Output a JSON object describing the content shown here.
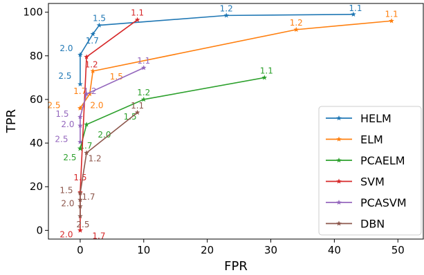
{
  "chart_data": {
    "type": "line",
    "xlabel": "FPR",
    "ylabel": "TPR",
    "xlim": [
      -5,
      54
    ],
    "ylim": [
      -4,
      104
    ],
    "xticks": [
      0,
      10,
      20,
      30,
      40,
      50
    ],
    "yticks": [
      0,
      20,
      40,
      60,
      80,
      100
    ],
    "grid": false,
    "legend_position": "lower-right",
    "series": [
      {
        "name": "HELM",
        "color": "#1f77b4",
        "points": [
          [
            43,
            99
          ],
          [
            23,
            98.5
          ],
          [
            3,
            94
          ],
          [
            2,
            90
          ],
          [
            0,
            80.5
          ],
          [
            0,
            67
          ]
        ],
        "labels": [
          "1.1",
          "1.2",
          "1.5",
          "1.7",
          "2.0",
          "2.5"
        ],
        "label_offsets": [
          [
            3,
            -5
          ],
          [
            0,
            -6
          ],
          [
            0,
            -6
          ],
          [
            -1,
            14
          ],
          [
            -20,
            -5
          ],
          [
            -22,
            -8
          ]
        ]
      },
      {
        "name": "ELM",
        "color": "#ff7f0e",
        "points": [
          [
            49,
            96
          ],
          [
            34,
            92
          ],
          [
            2,
            73
          ],
          [
            1.5,
            62.5
          ],
          [
            0,
            56
          ],
          [
            0,
            56
          ]
        ],
        "labels": [
          "1.1",
          "1.2",
          "1.5",
          "1.7",
          "2.0",
          "2.5"
        ],
        "label_offsets": [
          [
            0,
            -6
          ],
          [
            0,
            -6
          ],
          [
            34,
            12
          ],
          [
            -14,
            0
          ],
          [
            24,
            0
          ],
          [
            -38,
            0
          ]
        ]
      },
      {
        "name": "PCAELM",
        "color": "#2ca02c",
        "points": [
          [
            29,
            70
          ],
          [
            10,
            60
          ],
          [
            1,
            48.5
          ],
          [
            0,
            37.5
          ],
          [
            0,
            37.5
          ],
          [
            0,
            37.5
          ]
        ],
        "labels": [
          "1.1",
          "1.2",
          "1.5",
          "1.7",
          "2.0",
          "2.5"
        ],
        "label_offsets": [
          [
            3,
            -6
          ],
          [
            0,
            -6
          ],
          [
            63,
            -7
          ],
          [
            8,
            0
          ],
          [
            35,
            -16
          ],
          [
            -15,
            17
          ]
        ]
      },
      {
        "name": "SVM",
        "color": "#d62728",
        "points": [
          [
            9,
            96.5
          ],
          [
            1,
            79.5
          ],
          [
            0,
            17.5
          ],
          [
            0,
            0
          ],
          [
            0,
            0
          ]
        ],
        "labels": [
          "1.1",
          "1.2",
          "1.5",
          "1.7",
          "2.0"
        ],
        "label_offsets": [
          [
            0,
            -6
          ],
          [
            7,
            15
          ],
          [
            0,
            -17
          ],
          [
            27,
            12
          ],
          [
            -20,
            10
          ]
        ]
      },
      {
        "name": "PCASVM",
        "color": "#9467bd",
        "points": [
          [
            10,
            74.5
          ],
          [
            1,
            62.5
          ],
          [
            0,
            52
          ],
          [
            0,
            48
          ],
          [
            0,
            40.5
          ]
        ],
        "labels": [
          "1.1",
          "1.2",
          "1.5",
          "2.0",
          "2.5"
        ],
        "label_offsets": [
          [
            0,
            -6
          ],
          [
            5,
            0
          ],
          [
            -26,
            0
          ],
          [
            -18,
            2
          ],
          [
            -27,
            0
          ]
        ]
      },
      {
        "name": "DBN",
        "color": "#8c564b",
        "points": [
          [
            9,
            54
          ],
          [
            1,
            35.5
          ],
          [
            0,
            17
          ],
          [
            0,
            14
          ],
          [
            0,
            11
          ],
          [
            0,
            6.5
          ]
        ],
        "labels": [
          "1.1",
          "1.2",
          "1.5",
          "1.7",
          "2.0",
          "2.5"
        ],
        "label_offsets": [
          [
            0,
            -6
          ],
          [
            12,
            12
          ],
          [
            -20,
            0
          ],
          [
            12,
            0
          ],
          [
            -18,
            0
          ],
          [
            4,
            16
          ]
        ]
      }
    ]
  }
}
